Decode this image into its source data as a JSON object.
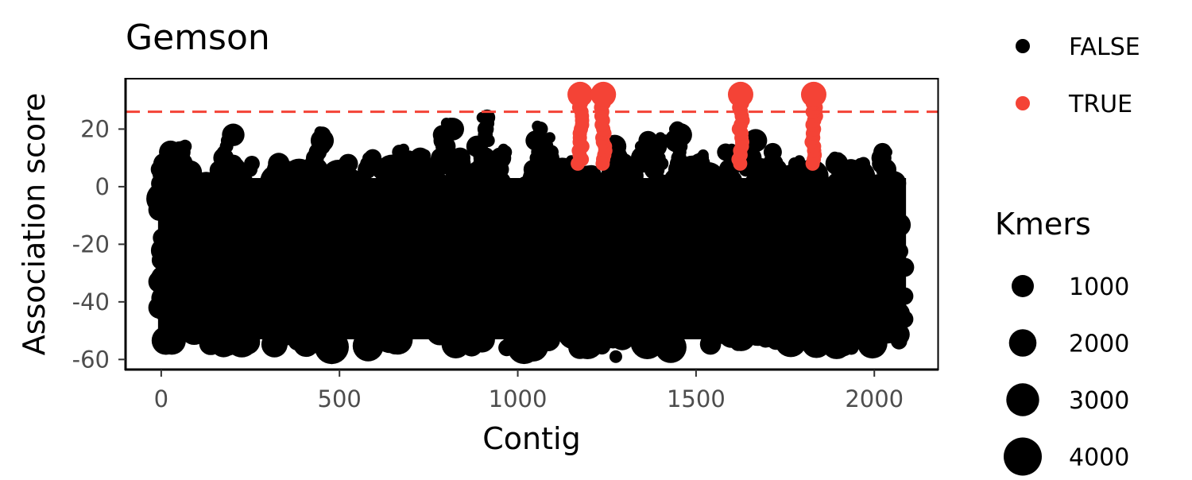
{
  "chart_data": {
    "type": "scatter",
    "title": "Gemson",
    "xlabel": "Contig",
    "ylabel": "Association score",
    "xlim": [
      -100,
      2180
    ],
    "ylim": [
      -63.5,
      37.5
    ],
    "x_ticks": [
      "0",
      "500",
      "1000",
      "1500",
      "2000"
    ],
    "x_tick_values": [
      0,
      500,
      1000,
      1500,
      2000
    ],
    "y_ticks": [
      "20",
      "0",
      "-20",
      "-40",
      "-60"
    ],
    "y_tick_values": [
      20,
      0,
      -20,
      -40,
      -60
    ],
    "threshold": 26,
    "threshold_color": "#f44336",
    "grid": false,
    "legend_placement": "right",
    "color_legend": {
      "title": "",
      "entries": [
        {
          "label": "FALSE",
          "color": "#000000"
        },
        {
          "label": "TRUE",
          "color": "#f44336"
        }
      ]
    },
    "size_legend": {
      "title": "Kmers",
      "entries": [
        {
          "label": "1000",
          "value": 1000
        },
        {
          "label": "2000",
          "value": 2000
        },
        {
          "label": "3000",
          "value": 3000
        },
        {
          "label": "4000",
          "value": 4000
        }
      ]
    },
    "series": [
      {
        "name": "FALSE",
        "color": "#000000",
        "band": {
          "x": [
            0,
            2080
          ],
          "y": [
            -56,
            6
          ]
        },
        "peaks": [
          {
            "x": 10,
            "y": 12
          },
          {
            "x": 60,
            "y": 14
          },
          {
            "x": 190,
            "y": 19
          },
          {
            "x": 260,
            "y": 8
          },
          {
            "x": 330,
            "y": 9
          },
          {
            "x": 445,
            "y": 19
          },
          {
            "x": 520,
            "y": 9
          },
          {
            "x": 580,
            "y": 10
          },
          {
            "x": 680,
            "y": 13
          },
          {
            "x": 740,
            "y": 11
          },
          {
            "x": 800,
            "y": 22
          },
          {
            "x": 845,
            "y": 10
          },
          {
            "x": 900,
            "y": 24
          },
          {
            "x": 960,
            "y": 13
          },
          {
            "x": 1055,
            "y": 21
          },
          {
            "x": 1090,
            "y": 17
          },
          {
            "x": 1150,
            "y": 9
          },
          {
            "x": 1280,
            "y": 15
          },
          {
            "x": 1360,
            "y": 16
          },
          {
            "x": 1400,
            "y": 17
          },
          {
            "x": 1440,
            "y": 20
          },
          {
            "x": 1520,
            "y": 11
          },
          {
            "x": 1600,
            "y": 13
          },
          {
            "x": 1650,
            "y": 16
          },
          {
            "x": 1720,
            "y": 12
          },
          {
            "x": 1790,
            "y": 9
          },
          {
            "x": 1900,
            "y": 10
          },
          {
            "x": 1960,
            "y": 8
          },
          {
            "x": 2035,
            "y": 12
          }
        ],
        "lows": [
          {
            "x": 1275,
            "y": -59
          }
        ]
      },
      {
        "name": "TRUE",
        "color": "#f44336",
        "peaks": [
          {
            "x": 1175,
            "y": 32
          },
          {
            "x": 1240,
            "y": 32
          },
          {
            "x": 1625,
            "y": 32
          },
          {
            "x": 1830,
            "y": 32
          }
        ]
      }
    ]
  }
}
